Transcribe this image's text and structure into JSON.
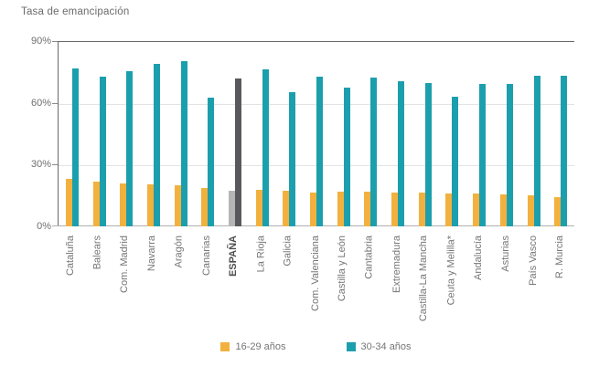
{
  "title": "Tasa de emancipación",
  "chart_data": {
    "type": "bar",
    "title": "Tasa de emancipación",
    "categories": [
      "Cataluña",
      "Balears",
      "Com. Madrid",
      "Navarra",
      "Aragón",
      "Canarias",
      "ESPAÑA",
      "La Rioja",
      "Galicia",
      "Com. Valenciana",
      "Castilla y León",
      "Cantabria",
      "Extremadura",
      "Castilla-La Mancha",
      "Ceuta y Melilla*",
      "Andalucía",
      "Asturias",
      "País Vasco",
      "R. Murcia"
    ],
    "highlight_category": "ESPAÑA",
    "series": [
      {
        "name": "16-29 años",
        "color": "#f2b13e",
        "highlight_color": "#b5b5b7",
        "values": [
          23.3,
          21.8,
          21.1,
          20.6,
          20.0,
          18.7,
          17.4,
          17.7,
          17.3,
          16.5,
          16.8,
          16.8,
          16.6,
          16.4,
          16.0,
          16.0,
          15.6,
          15.1,
          14.3
        ]
      },
      {
        "name": "30-34 años",
        "color": "#1c9fad",
        "highlight_color": "#59595b",
        "values": [
          77.0,
          73.0,
          75.8,
          79.5,
          80.5,
          63.0,
          72.3,
          76.7,
          65.6,
          73.0,
          67.8,
          72.7,
          70.8,
          70.0,
          63.4,
          69.7,
          69.3,
          73.3,
          73.7
        ]
      }
    ],
    "y_ticks": [
      {
        "label": "90%",
        "value": 90
      },
      {
        "label": "60%",
        "value": 60
      },
      {
        "label": "30%",
        "value": 30
      },
      {
        "label": "0%",
        "value": 0
      }
    ],
    "ylim": [
      0,
      90
    ],
    "gridlines_at": [
      60,
      30
    ],
    "legend_position": "bottom",
    "axis_color": "#6a6a6a",
    "grid_color": "#e3e3e3",
    "baseline_color": "#b0b0b0"
  }
}
